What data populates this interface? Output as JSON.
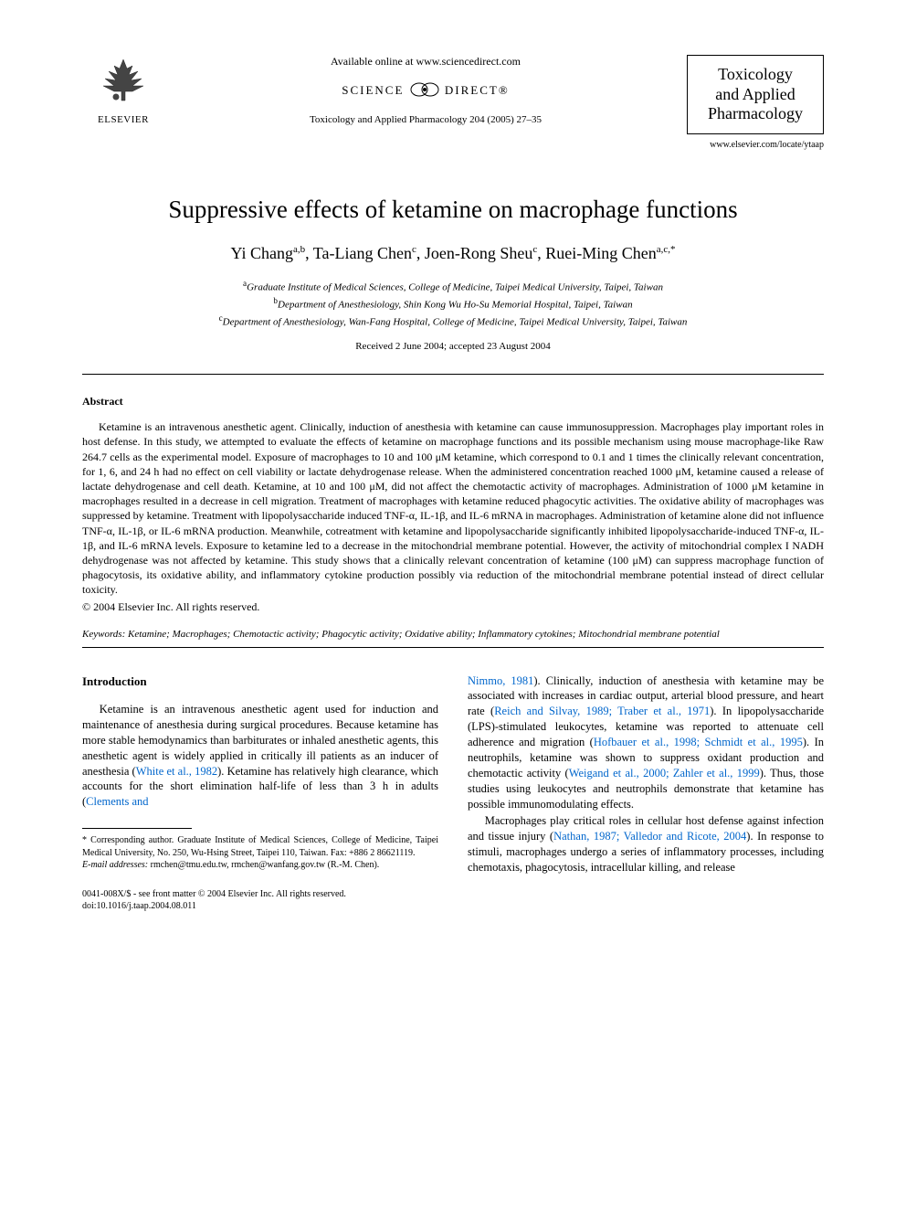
{
  "header": {
    "available_text": "Available online at www.sciencedirect.com",
    "science_direct": "SCIENCE",
    "science_direct2": "DIRECT®",
    "citation": "Toxicology and Applied Pharmacology 204 (2005) 27–35",
    "elsevier_label": "ELSEVIER",
    "journal_name_1": "Toxicology",
    "journal_name_2": "and Applied",
    "journal_name_3": "Pharmacology",
    "journal_url": "www.elsevier.com/locate/ytaap"
  },
  "article": {
    "title": "Suppressive effects of ketamine on macrophage functions",
    "authors_html": "Yi Chang<sup>a,b</sup>, Ta-Liang Chen<sup>c</sup>, Joen-Rong Sheu<sup>c</sup>, Ruei-Ming Chen<sup>a,c,*</sup>",
    "affiliations": {
      "a": "Graduate Institute of Medical Sciences, College of Medicine, Taipei Medical University, Taipei, Taiwan",
      "b": "Department of Anesthesiology, Shin Kong Wu Ho-Su Memorial Hospital, Taipei, Taiwan",
      "c": "Department of Anesthesiology, Wan-Fang Hospital, College of Medicine, Taipei Medical University, Taipei, Taiwan"
    },
    "received": "Received 2 June 2004; accepted 23 August 2004"
  },
  "abstract": {
    "heading": "Abstract",
    "body": "Ketamine is an intravenous anesthetic agent. Clinically, induction of anesthesia with ketamine can cause immunosuppression. Macrophages play important roles in host defense. In this study, we attempted to evaluate the effects of ketamine on macrophage functions and its possible mechanism using mouse macrophage-like Raw 264.7 cells as the experimental model. Exposure of macrophages to 10 and 100 μM ketamine, which correspond to 0.1 and 1 times the clinically relevant concentration, for 1, 6, and 24 h had no effect on cell viability or lactate dehydrogenase release. When the administered concentration reached 1000 μM, ketamine caused a release of lactate dehydrogenase and cell death. Ketamine, at 10 and 100 μM, did not affect the chemotactic activity of macrophages. Administration of 1000 μM ketamine in macrophages resulted in a decrease in cell migration. Treatment of macrophages with ketamine reduced phagocytic activities. The oxidative ability of macrophages was suppressed by ketamine. Treatment with lipopolysaccharide induced TNF-α, IL-1β, and IL-6 mRNA in macrophages. Administration of ketamine alone did not influence TNF-α, IL-1β, or IL-6 mRNA production. Meanwhile, cotreatment with ketamine and lipopolysaccharide significantly inhibited lipopolysaccharide-induced TNF-α, IL-1β, and IL-6 mRNA levels. Exposure to ketamine led to a decrease in the mitochondrial membrane potential. However, the activity of mitochondrial complex I NADH dehydrogenase was not affected by ketamine. This study shows that a clinically relevant concentration of ketamine (100 μM) can suppress macrophage function of phagocytosis, its oxidative ability, and inflammatory cytokine production possibly via reduction of the mitochondrial membrane potential instead of direct cellular toxicity.",
    "copyright": "© 2004 Elsevier Inc. All rights reserved."
  },
  "keywords": {
    "label": "Keywords:",
    "text": " Ketamine; Macrophages; Chemotactic activity; Phagocytic activity; Oxidative ability; Inflammatory cytokines; Mitochondrial membrane potential"
  },
  "intro": {
    "heading": "Introduction",
    "col1_p1_a": "Ketamine is an intravenous anesthetic agent used for induction and maintenance of anesthesia during surgical procedures. Because ketamine has more stable hemodynamics than barbiturates or inhaled anesthetic agents, this anesthetic agent is widely applied in critically ill patients as an inducer of anesthesia (",
    "col1_ref1": "White et al., 1982",
    "col1_p1_b": "). Ketamine has relatively high clearance, which accounts for the short elimination half-life of less than 3 h in adults (",
    "col1_ref2": "Clements and",
    "col2_ref2b": "Nimmo, 1981",
    "col2_p1_a": "). Clinically, induction of anesthesia with ketamine may be associated with increases in cardiac output, arterial blood pressure, and heart rate (",
    "col2_ref3": "Reich and Silvay, 1989; Traber et al., 1971",
    "col2_p1_b": "). In lipopolysaccharide (LPS)-stimulated leukocytes, ketamine was reported to attenuate cell adherence and migration (",
    "col2_ref4": "Hofbauer et al., 1998; Schmidt et al., 1995",
    "col2_p1_c": "). In neutrophils, ketamine was shown to suppress oxidant production and chemotactic activity (",
    "col2_ref5": "Weigand et al., 2000; Zahler et al., 1999",
    "col2_p1_d": "). Thus, those studies using leukocytes and neutrophils demonstrate that ketamine has possible immunomodulating effects.",
    "col2_p2_a": "Macrophages play critical roles in cellular host defense against infection and tissue injury (",
    "col2_ref6": "Nathan, 1987; Valledor and Ricote, 2004",
    "col2_p2_b": "). In response to stimuli, macrophages undergo a series of inflammatory processes, including chemotaxis, phagocytosis, intracellular killing, and release"
  },
  "footnotes": {
    "corr": "* Corresponding author. Graduate Institute of Medical Sciences, College of Medicine, Taipei Medical University, No. 250, Wu-Hsing Street, Taipei 110, Taiwan. Fax: +886 2 86621119.",
    "email_label": "E-mail addresses:",
    "email_text": " rmchen@tmu.edu.tw, rmchen@wanfang.gov.tw (R.-M. Chen)."
  },
  "footer": {
    "line1": "0041-008X/$ - see front matter © 2004 Elsevier Inc. All rights reserved.",
    "line2": "doi:10.1016/j.taap.2004.08.011"
  },
  "colors": {
    "link": "#0066cc",
    "text": "#000000",
    "background": "#ffffff"
  }
}
